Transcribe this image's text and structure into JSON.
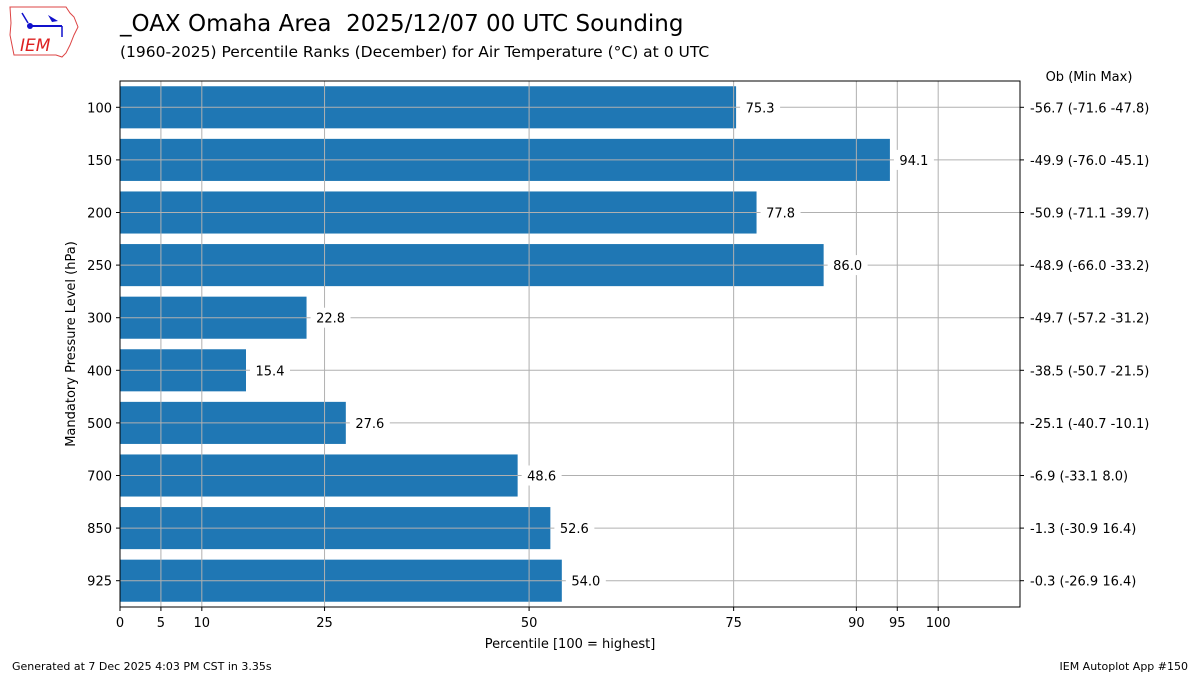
{
  "header": {
    "title": "_OAX Omaha Area  2025/12/07 00 UTC Sounding",
    "subtitle": "(1960-2025) Percentile Ranks (December) for Air Temperature (°C) at 0 UTC",
    "logo_text": "IEM"
  },
  "footer": {
    "left": "Generated at 7 Dec 2025 4:03 PM CST in 3.35s",
    "right": "IEM Autoplot App #150"
  },
  "chart_data": {
    "type": "bar",
    "orientation": "horizontal",
    "xlabel": "Percentile [100 = highest]",
    "ylabel": "Mandatory Pressure Level (hPa)",
    "right_header": "Ob  (Min  Max)",
    "xlim": [
      0,
      110
    ],
    "xticks": [
      0,
      5,
      10,
      25,
      50,
      75,
      90,
      95,
      100
    ],
    "grid": true,
    "bar_color": "#1f77b4",
    "categories": [
      "100",
      "150",
      "200",
      "250",
      "300",
      "400",
      "500",
      "700",
      "850",
      "925"
    ],
    "values": [
      75.3,
      94.1,
      77.8,
      86.0,
      22.8,
      15.4,
      27.6,
      48.6,
      52.6,
      54.0
    ],
    "value_labels": [
      "75.3",
      "94.1",
      "77.8",
      "86.0",
      "22.8",
      "15.4",
      "27.6",
      "48.6",
      "52.6",
      "54.0"
    ],
    "right_labels": [
      "-56.7 (-71.6 -47.8)",
      "-49.9 (-76.0 -45.1)",
      "-50.9 (-71.1 -39.7)",
      "-48.9 (-66.0 -33.2)",
      "-49.7 (-57.2 -31.2)",
      "-38.5 (-50.7 -21.5)",
      "-25.1 (-40.7 -10.1)",
      "-6.9 (-33.1 8.0)",
      "-1.3 (-30.9 16.4)",
      "-0.3 (-26.9 16.4)"
    ]
  }
}
